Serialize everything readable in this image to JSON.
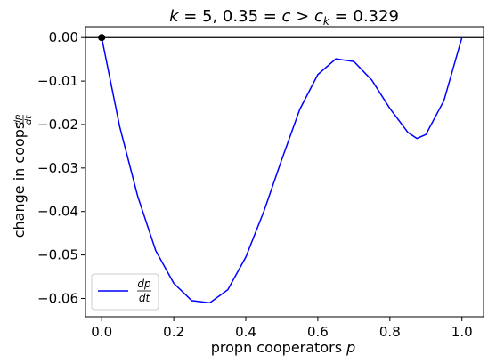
{
  "chart_data": {
    "type": "line",
    "title": "k = 5, 0.35 = c > c_k = 0.329",
    "title_parts": {
      "k": "k",
      "eq1": " = 5, 0.35 = ",
      "c": "c",
      "gt": " > ",
      "ck": "c",
      "ck_sub": "k",
      "eq2": " = 0.329"
    },
    "xlabel": "propn cooperators p",
    "xlabel_parts": {
      "text": "propn cooperators ",
      "var": "p"
    },
    "ylabel": "change in coops dp/dt",
    "ylabel_parts": {
      "text": "change in coops ",
      "num": "dp",
      "den": "dt"
    },
    "xlim": [
      -0.045,
      1.06
    ],
    "ylim": [
      -0.0642,
      0.0025
    ],
    "xticks": [
      "0.0",
      "0.2",
      "0.4",
      "0.6",
      "0.8",
      "1.0"
    ],
    "xtick_values": [
      0.0,
      0.2,
      0.4,
      0.6,
      0.8,
      1.0
    ],
    "yticks": [
      "0.00",
      "−0.01",
      "−0.02",
      "−0.03",
      "−0.04",
      "−0.05",
      "−0.06"
    ],
    "ytick_values": [
      0.0,
      -0.01,
      -0.02,
      -0.03,
      -0.04,
      -0.05,
      -0.06
    ],
    "legend": {
      "placement": "lower-left",
      "num": "dp",
      "den": "dt"
    },
    "grid": false,
    "horizontal_line": {
      "y": 0.0,
      "color": "#000000"
    },
    "points": [
      {
        "name": "equilibrium-point",
        "x": 0.0,
        "y": 0.0,
        "color": "#000000"
      }
    ],
    "series": [
      {
        "name": "dp/dt",
        "color": "#0000ff",
        "x": [
          0.0,
          0.05,
          0.1,
          0.15,
          0.2,
          0.25,
          0.3,
          0.35,
          0.4,
          0.45,
          0.5,
          0.55,
          0.6,
          0.65,
          0.7,
          0.75,
          0.8,
          0.85,
          0.875,
          0.9,
          0.95,
          1.0
        ],
        "y": [
          0.0,
          -0.0205,
          -0.0365,
          -0.049,
          -0.0565,
          -0.0605,
          -0.061,
          -0.058,
          -0.0505,
          -0.04,
          -0.028,
          -0.0165,
          -0.0085,
          -0.0049,
          -0.0055,
          -0.0098,
          -0.0163,
          -0.0218,
          -0.0232,
          -0.0223,
          -0.0145,
          0.0
        ]
      }
    ]
  }
}
